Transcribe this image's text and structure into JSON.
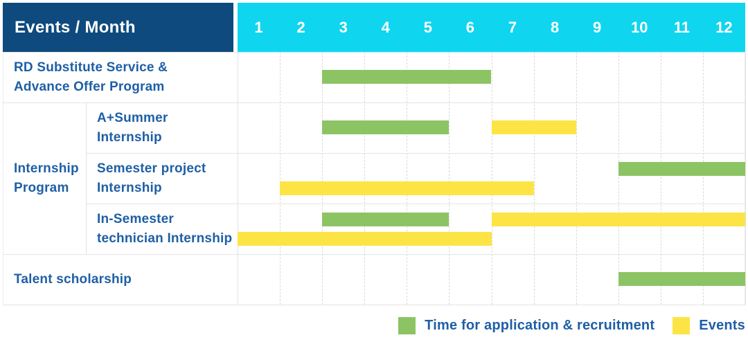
{
  "header": {
    "title": "Events / Month",
    "months": [
      "1",
      "2",
      "3",
      "4",
      "5",
      "6",
      "7",
      "8",
      "9",
      "10",
      "11",
      "12"
    ]
  },
  "colors": {
    "header_navy": "#0e4a7d",
    "header_cyan": "#10d5ef",
    "label_text_blue": "#1e5fa6",
    "application_green": "#8cc463",
    "events_yellow": "#fde445"
  },
  "chart_data": {
    "type": "gantt",
    "x_unit": "month",
    "x_ticks": [
      1,
      2,
      3,
      4,
      5,
      6,
      7,
      8,
      9,
      10,
      11,
      12
    ],
    "series_types": {
      "application": {
        "label": "Time for application & recruitment",
        "color": "#8cc463"
      },
      "events": {
        "label": "Events",
        "color": "#fde445"
      }
    },
    "group_label_lines": [
      "Internship",
      "Program"
    ],
    "rows": [
      {
        "label_lines": [
          "RD Substitute Service &",
          "Advance Offer Program"
        ],
        "group": null,
        "bars": [
          {
            "series": "application",
            "start_month": 3,
            "end_month": 6,
            "lane": "single"
          }
        ]
      },
      {
        "label_lines": [
          "A+Summer",
          "Internship"
        ],
        "group": "Internship Program",
        "bars": [
          {
            "series": "application",
            "start_month": 3,
            "end_month": 5,
            "lane": "single"
          },
          {
            "series": "events",
            "start_month": 7,
            "end_month": 8,
            "lane": "single"
          }
        ]
      },
      {
        "label_lines": [
          "Semester project",
          "Internship"
        ],
        "group": "Internship Program",
        "bars": [
          {
            "series": "application",
            "start_month": 10,
            "end_month": 12,
            "lane": "top"
          },
          {
            "series": "events",
            "start_month": 2,
            "end_month": 7,
            "lane": "bottom"
          }
        ]
      },
      {
        "label_lines": [
          "In-Semester",
          "technician Internship"
        ],
        "group": "Internship Program",
        "bars": [
          {
            "series": "application",
            "start_month": 3,
            "end_month": 5,
            "lane": "top"
          },
          {
            "series": "events",
            "start_month": 7,
            "end_month": 12,
            "lane": "top"
          },
          {
            "series": "events",
            "start_month": 1,
            "end_month": 6,
            "lane": "bottom"
          }
        ]
      },
      {
        "label_lines": [
          "Talent scholarship"
        ],
        "group": null,
        "bars": [
          {
            "series": "application",
            "start_month": 10,
            "end_month": 12,
            "lane": "single"
          }
        ]
      }
    ]
  },
  "legend": [
    {
      "series": "application",
      "label": "Time for application & recruitment"
    },
    {
      "series": "events",
      "label": "Events"
    }
  ]
}
